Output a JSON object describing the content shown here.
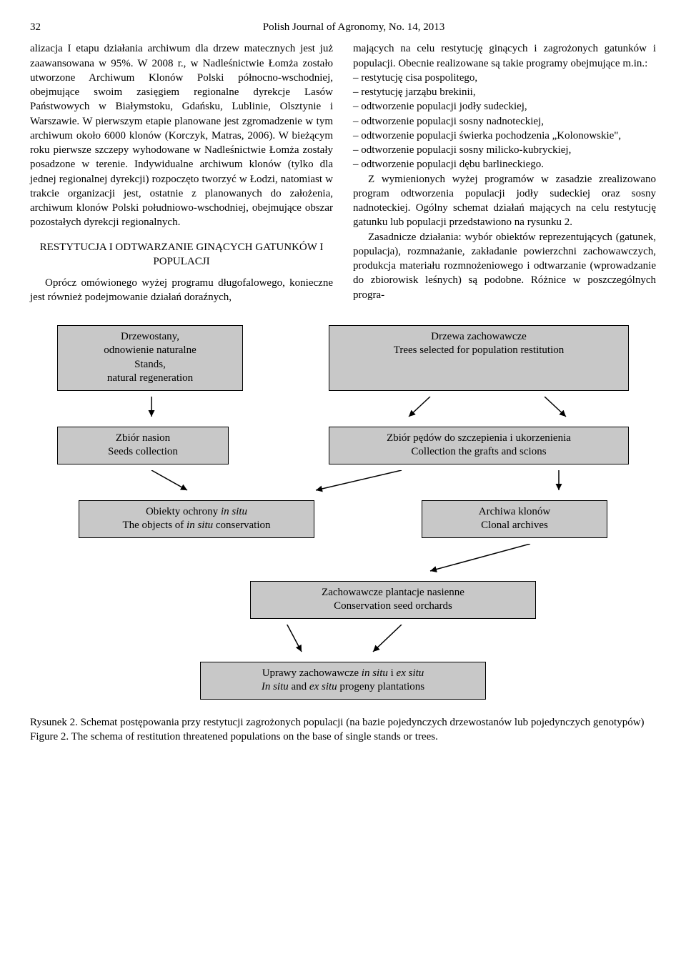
{
  "header": {
    "page_number": "32",
    "journal": "Polish Journal of Agronomy, No. 14, 2013"
  },
  "left_col": {
    "p1": "alizacja I etapu działania archiwum dla drzew matecznych jest już zaawansowana w 95%. W 2008 r., w Nadleśnictwie Łomża zostało utworzone Archiwum Klonów Polski północno-wschodniej, obejmujące swoim zasięgiem regionalne dyrekcje Lasów Państwowych w Białymstoku, Gdańsku, Lublinie, Olsztynie i Warszawie. W pierwszym etapie planowane jest zgromadzenie w tym archiwum około 6000 klonów (Korczyk, Matras, 2006). W bieżącym roku pierwsze szczepy wyhodowane w Nadleśnictwie Łomża zostały posadzone w terenie. Indywidualne archiwum klonów (tylko dla jednej regionalnej dyrekcji) rozpoczęto tworzyć w Łodzi, natomiast w trakcie organizacji jest, ostatnie z planowanych do założenia, archiwum klonów Polski południowo-wschodniej, obejmujące obszar pozostałych dyrekcji regionalnych.",
    "section_head": "RESTYTUCJA I ODTWARZANIE GINĄCYCH GATUNKÓW I POPULACJI",
    "p2": "Oprócz omówionego wyżej programu długofalowego, konieczne jest również podejmowanie działań doraźnych,"
  },
  "right_col": {
    "p1": "mających na celu restytucję ginących i zagrożonych gatunków i populacji. Obecnie realizowane są takie programy obejmujące m.in.:",
    "bullets": [
      "restytucję cisa pospolitego,",
      "restytucję jarząbu brekinii,",
      "odtworzenie populacji jodły sudeckiej,",
      "odtworzenie populacji sosny nadnoteckiej,",
      "odtworzenie populacji świerka pochodzenia „Kolonowskie\",",
      "odtworzenie populacji sosny milicko-kubryckiej,",
      "odtworzenie populacji dębu barlineckiego."
    ],
    "p2": "Z wymienionych wyżej programów w zasadzie zrealizowano program odtworzenia populacji jodły sudeckiej oraz sosny nadnoteckiej. Ogólny schemat działań mających na celu restytucję gatunku lub populacji przedstawiono na rysunku 2.",
    "p3": "Zasadnicze działania: wybór obiektów reprezentujących (gatunek, populacja), rozmnażanie, zakładanie powierzchni zachowawczych, produkcja materiału rozmnożeniowego i odtwarzanie (wprowadzanie do zbiorowisk leśnych) są podobne. Różnice w poszczególnych progra-"
  },
  "diagram": {
    "box1": {
      "pl": "Drzewostany,\nodnowienie naturalne",
      "en": "Stands,\nnatural regeneration"
    },
    "box2": {
      "pl": "Drzewa zachowawcze",
      "en": "Trees selected for population restitution"
    },
    "box3": {
      "pl": "Zbiór nasion",
      "en": "Seeds collection"
    },
    "box4": {
      "pl": "Zbiór pędów do szczepienia i ukorzenienia",
      "en": "Collection the grafts and scions"
    },
    "box5": {
      "pl_html": "Obiekty ochrony <em>in situ</em>",
      "en_html": "The objects of <em>in situ</em> conservation"
    },
    "box6": {
      "pl": "Archiwa klonów",
      "en": "Clonal archives"
    },
    "box7": {
      "pl": "Zachowawcze plantacje nasienne",
      "en": "Conservation seed orchards"
    },
    "box8": {
      "pl_html": "Uprawy zachowawcze <em>in situ</em> i <em>ex situ</em>",
      "en_html": "<em>In situ</em> and <em>ex situ</em> progeny plantations"
    },
    "box_bg": "#c8c8c8",
    "box_border": "#000000",
    "arrow_color": "#000000",
    "widths": {
      "box1": 260,
      "box2": 420,
      "box3": 240,
      "box4": 420,
      "box5": 330,
      "box6": 260,
      "box7": 400,
      "box8": 400
    }
  },
  "caption": {
    "pl": "Rysunek 2. Schemat postępowania przy restytucji zagrożonych populacji (na bazie pojedynczych drzewostanów lub pojedynczych genotypów)",
    "en": "Figure 2. The schema of restitution threatened populations on the base of single stands or trees."
  }
}
